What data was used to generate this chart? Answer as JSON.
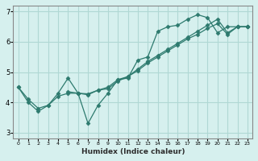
{
  "xlabel": "Humidex (Indice chaleur)",
  "bg_color": "#d6f0ee",
  "grid_color": "#b0d8d4",
  "line_color": "#2d7a6e",
  "series": {
    "line1_x": [
      0,
      1,
      2,
      3,
      4,
      5,
      6,
      7,
      8,
      9,
      10,
      11,
      12,
      13,
      14,
      15,
      16,
      17,
      18,
      19,
      20,
      21,
      22,
      23
    ],
    "line1_y": [
      4.5,
      4.0,
      3.7,
      3.9,
      4.3,
      4.8,
      4.3,
      3.3,
      3.9,
      4.3,
      4.75,
      4.8,
      5.4,
      5.5,
      6.35,
      6.5,
      6.55,
      6.75,
      6.9,
      6.8,
      6.3,
      6.5,
      6.5,
      6.5
    ],
    "line2_x": [
      0,
      1,
      2,
      3,
      4,
      5,
      6,
      7,
      8,
      9,
      10,
      11,
      12,
      13,
      14,
      15,
      16,
      17,
      18,
      19,
      20,
      21,
      22,
      23
    ],
    "line2_y": [
      4.5,
      4.1,
      3.8,
      3.9,
      4.2,
      4.3,
      4.3,
      4.25,
      4.4,
      4.45,
      4.7,
      4.85,
      5.05,
      5.3,
      5.5,
      5.7,
      5.9,
      6.1,
      6.25,
      6.45,
      6.6,
      6.25,
      6.5,
      6.5
    ],
    "line3_x": [
      5,
      6,
      7,
      8,
      9,
      10,
      11,
      12,
      13,
      14,
      15,
      16,
      17,
      18,
      19,
      20,
      21,
      22,
      23
    ],
    "line3_y": [
      4.35,
      4.3,
      4.28,
      4.4,
      4.5,
      4.75,
      4.85,
      5.1,
      5.35,
      5.55,
      5.75,
      5.95,
      6.15,
      6.35,
      6.55,
      6.75,
      6.3,
      6.5,
      6.5
    ]
  },
  "xlim": [
    -0.5,
    23.5
  ],
  "ylim": [
    2.8,
    7.2
  ],
  "yticks": [
    3,
    4,
    5,
    6,
    7
  ],
  "xticks": [
    0,
    1,
    2,
    3,
    4,
    5,
    6,
    7,
    8,
    9,
    10,
    11,
    12,
    13,
    14,
    15,
    16,
    17,
    18,
    19,
    20,
    21,
    22,
    23
  ]
}
